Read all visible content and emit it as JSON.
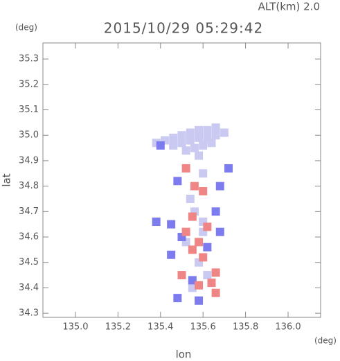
{
  "chart_data": {
    "type": "scatter",
    "title": "2015/10/29 05:29:42",
    "subtitle": "ALT(km) 2.0",
    "x_label": "lon",
    "y_label": "lat",
    "x_unit": "(deg)",
    "y_unit": "(deg)",
    "xlim": [
      134.847,
      136.153
    ],
    "ylim": [
      34.284,
      35.363
    ],
    "xticks": [
      {
        "value": 135.0,
        "label": "135.0"
      },
      {
        "value": 135.2,
        "label": "135.2"
      },
      {
        "value": 135.4,
        "label": "135.4"
      },
      {
        "value": 135.6,
        "label": "135.6"
      },
      {
        "value": 135.8,
        "label": "135.8"
      },
      {
        "value": 136.0,
        "label": "136.0"
      }
    ],
    "yticks": [
      34.3,
      34.4,
      34.5,
      34.6,
      34.7,
      34.8,
      34.9,
      {
        "value": 35.0,
        "label": "35.0"
      },
      35.1,
      35.2,
      35.3
    ],
    "series": [
      {
        "color": "#c9c9f2",
        "x": [
          135.38,
          135.42,
          135.46,
          135.5,
          135.54,
          135.58,
          135.62,
          135.66,
          135.46,
          135.5,
          135.54,
          135.58,
          135.62,
          135.66,
          135.7,
          135.52,
          135.56,
          135.6,
          135.64,
          135.58,
          135.56,
          135.6,
          135.52,
          135.58,
          135.62,
          135.55,
          135.6,
          135.54,
          135.6
        ],
        "values": [
          34.97,
          34.98,
          34.99,
          35.0,
          35.01,
          35.02,
          35.02,
          35.03,
          34.96,
          34.97,
          34.98,
          34.99,
          34.99,
          35.0,
          35.01,
          34.94,
          34.95,
          34.96,
          34.97,
          34.92,
          34.7,
          34.62,
          34.58,
          34.5,
          34.45,
          34.4,
          34.66,
          34.75,
          34.85
        ]
      },
      {
        "color": "#7c7cee",
        "x": [
          135.4,
          135.38,
          135.45,
          135.5,
          135.62,
          135.66,
          135.68,
          135.48,
          135.55,
          135.48,
          135.68,
          135.45,
          135.72,
          135.58
        ],
        "values": [
          34.96,
          34.66,
          34.65,
          34.6,
          34.56,
          34.7,
          34.8,
          34.82,
          34.43,
          34.36,
          34.62,
          34.53,
          34.87,
          34.35
        ]
      },
      {
        "color": "#f08585",
        "x": [
          135.52,
          135.56,
          135.6,
          135.52,
          135.58,
          135.55,
          135.6,
          135.66,
          135.64,
          135.58,
          135.66,
          135.55,
          135.62,
          135.5
        ],
        "values": [
          34.87,
          34.8,
          34.78,
          34.62,
          34.58,
          34.55,
          34.52,
          34.46,
          34.42,
          34.41,
          34.38,
          34.68,
          34.64,
          34.45
        ]
      }
    ]
  }
}
